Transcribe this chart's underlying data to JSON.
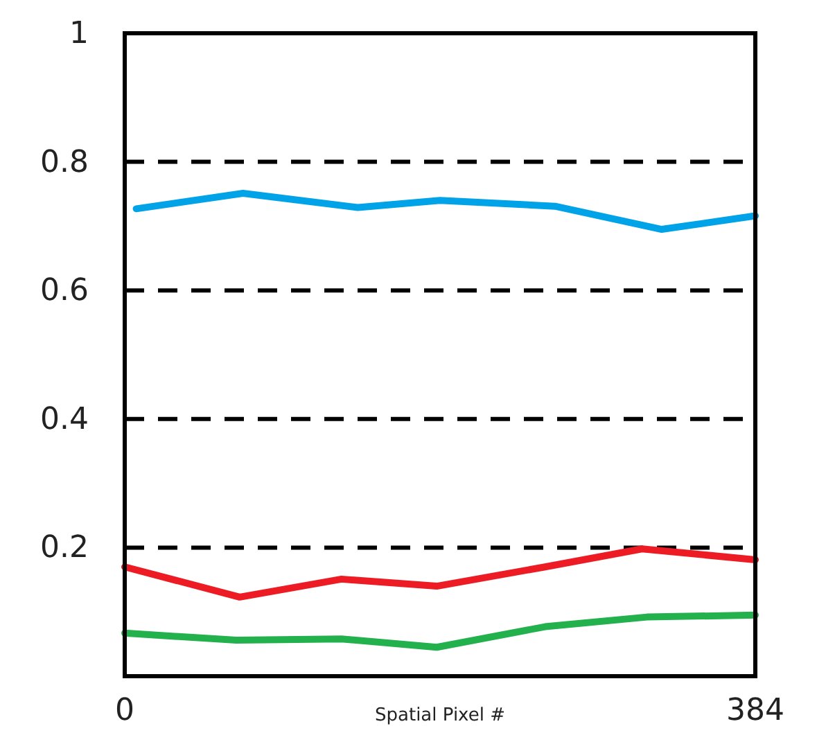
{
  "chart_data": {
    "type": "line",
    "xlabel": "Spatial Pixel #",
    "xlim": [
      0,
      384
    ],
    "xticks": [
      0,
      384
    ],
    "ylim": [
      0,
      1
    ],
    "yticks": [
      0.2,
      0.4,
      0.6,
      0.8,
      1
    ],
    "grid": "y",
    "line_style": "solid",
    "series": [
      {
        "color": "#00a2e8",
        "x": [
          7,
          72,
          142,
          192,
          262,
          327,
          384
        ],
        "values": [
          0.727,
          0.751,
          0.729,
          0.74,
          0.731,
          0.695,
          0.716
        ]
      },
      {
        "color": "#ed1c24",
        "x": [
          0,
          70,
          132,
          190,
          256,
          315,
          384
        ],
        "values": [
          0.17,
          0.123,
          0.151,
          0.14,
          0.17,
          0.198,
          0.181
        ]
      },
      {
        "color": "#22b14c",
        "x": [
          0,
          68,
          132,
          190,
          256,
          318,
          384
        ],
        "values": [
          0.067,
          0.056,
          0.058,
          0.045,
          0.077,
          0.092,
          0.095
        ]
      }
    ]
  }
}
